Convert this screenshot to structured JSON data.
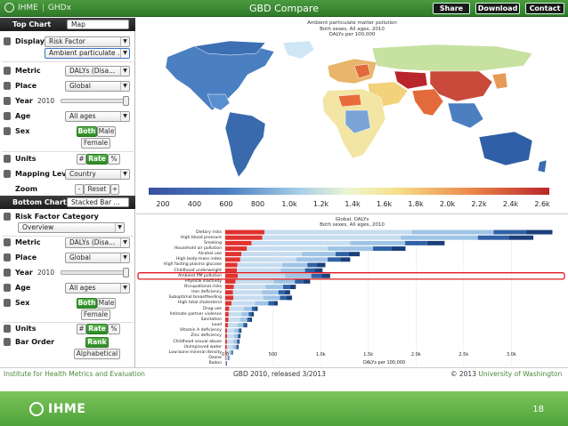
{
  "topbar": {
    "brand": "IHME",
    "brand_sub": "GHDx",
    "title": "GBD Compare",
    "buttons": [
      "Share",
      "Download",
      "Contact"
    ]
  },
  "top_chart": {
    "header": "Top Chart",
    "chart_type": "Map",
    "display_label": "Display",
    "display_value": "Risk Factor",
    "display_sub_value": "Ambient particulate ...",
    "metric_label": "Metric",
    "metric_value": "DALYs (Disa...",
    "place_label": "Place",
    "place_value": "Global",
    "year_label": "Year",
    "year_value": "2010",
    "age_label": "Age",
    "age_value": "All ages",
    "sex_label": "Sex",
    "sex_options": [
      "Both",
      "Male",
      "Female"
    ],
    "units_label": "Units",
    "units_options": [
      "#",
      "Rate",
      "%"
    ],
    "mapping_label": "Mapping Level",
    "mapping_value": "Country",
    "zoom_label": "Zoom",
    "zoom_minus": "-",
    "zoom_reset": "Reset",
    "zoom_plus": "+"
  },
  "bottom_chart": {
    "header": "Bottom Chart",
    "chart_type": "Stacked Bar ...",
    "category_label": "Risk Factor Category",
    "category_value": "Overview",
    "metric_label": "Metric",
    "metric_value": "DALYs (Disa...",
    "place_label": "Place",
    "place_value": "Global",
    "year_label": "Year",
    "year_value": "2010",
    "age_label": "Age",
    "age_value": "All ages",
    "sex_label": "Sex",
    "sex_options": [
      "Both",
      "Male",
      "Female"
    ],
    "units_label": "Units",
    "units_options": [
      "#",
      "Rate",
      "%"
    ],
    "order_label": "Bar Order",
    "order_options": [
      "Rank",
      "Alphabetical"
    ]
  },
  "map": {
    "title": "Ambient particulate matter pollution",
    "subtitle1": "Both sexes, All ages, 2010",
    "subtitle2": "DALYs per 100,000",
    "legend_ticks": [
      "200",
      "400",
      "600",
      "800",
      "1.0k",
      "1.2k",
      "1.4k",
      "1.6k",
      "1.8k",
      "2.0k",
      "2.2k",
      "2.4k",
      "2.6k"
    ]
  },
  "chart_data": {
    "type": "bar",
    "title": "Global, DALYs",
    "subtitle": "Both sexes, All ages, 2010",
    "xlabel": "DALYs per 100,000",
    "xlim": [
      0,
      3500
    ],
    "x_ticks": [
      "0.0",
      "500",
      "1.0k",
      "1.5k",
      "2.0k",
      "2.5k",
      "3.0k"
    ],
    "highlighted": "Ambient PM pollution",
    "categories": [
      "Dietary risks",
      "High blood pressure",
      "Smoking",
      "Household air pollution",
      "Alcohol use",
      "High body-mass index",
      "High fasting plasma glucose",
      "Childhood underweight",
      "Ambient PM pollution",
      "Physical inactivity",
      "Occupational risks",
      "Iron deficiency",
      "Suboptimal breastfeeding",
      "High total cholesterol",
      "Drug use",
      "Intimate partner violence",
      "Sanitation",
      "Lead",
      "Vitamin A deficiency",
      "Zinc deficiency",
      "Childhood sexual abuse",
      "Unimproved water",
      "Low bone mineral density",
      "Ozone",
      "Radon"
    ],
    "values": [
      3430,
      3230,
      2300,
      1890,
      1410,
      1310,
      1050,
      1020,
      1100,
      890,
      740,
      680,
      700,
      550,
      340,
      300,
      280,
      230,
      170,
      160,
      150,
      140,
      80,
      40,
      15
    ]
  }
}
